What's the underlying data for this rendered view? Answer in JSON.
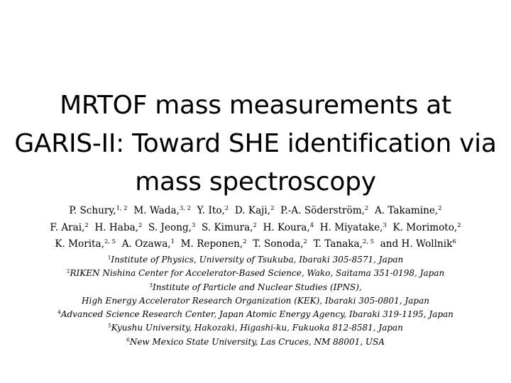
{
  "title": {
    "line1": "MRTOF mass measurements at",
    "line2": "GARIS-II: Toward SHE identification via",
    "line3": "mass spectroscopy"
  },
  "authors": [
    [
      {
        "name": "P. Schury,",
        "sup": "1, 2"
      },
      {
        "name": "M. Wada,",
        "sup": "3, 2"
      },
      {
        "name": "Y. Ito,",
        "sup": "2"
      },
      {
        "name": "D. Kaji,",
        "sup": "2"
      },
      {
        "name": "P.-A. Söderström,",
        "sup": "2"
      },
      {
        "name": "A. Takamine,",
        "sup": "2"
      }
    ],
    [
      {
        "name": "F. Arai,",
        "sup": "2"
      },
      {
        "name": "H. Haba,",
        "sup": "2"
      },
      {
        "name": "S. Jeong,",
        "sup": "3"
      },
      {
        "name": "S. Kimura,",
        "sup": "2"
      },
      {
        "name": "H. Koura,",
        "sup": "4"
      },
      {
        "name": "H. Miyatake,",
        "sup": "3"
      },
      {
        "name": "K. Morimoto,",
        "sup": "2"
      }
    ],
    [
      {
        "name": "K. Morita,",
        "sup": "2, 5"
      },
      {
        "name": "A. Ozawa,",
        "sup": "1"
      },
      {
        "name": "M. Reponen,",
        "sup": "2"
      },
      {
        "name": "T. Sonoda,",
        "sup": "2"
      },
      {
        "name": "T. Tanaka,",
        "sup": "2, 5"
      },
      {
        "name": "and H. Wollnik",
        "sup": "6"
      }
    ]
  ],
  "affiliations": [
    {
      "sup": "1",
      "text": "Institute of Physics, University of Tsukuba, Ibaraki 305-8571, Japan"
    },
    {
      "sup": "2",
      "text": "RIKEN Nishina Center for Accelerator-Based Science, Wako, Saitama 351-0198, Japan"
    },
    {
      "sup": "3",
      "text": "Institute of Particle and Nuclear Studies (IPNS),"
    },
    {
      "sup": "",
      "text": "High Energy Accelerator Research Organization (KEK), Ibaraki 305-0801, Japan"
    },
    {
      "sup": "4",
      "text": "Advanced Science Research Center, Japan Atomic Energy Agency, Ibaraki 319-1195, Japan"
    },
    {
      "sup": "5",
      "text": "Kyushu University, Hakozaki, Higashi-ku, Fukuoka 812-8581, Japan"
    },
    {
      "sup": "6",
      "text": "New Mexico State University, Las Cruces, NM 88001, USA"
    }
  ]
}
